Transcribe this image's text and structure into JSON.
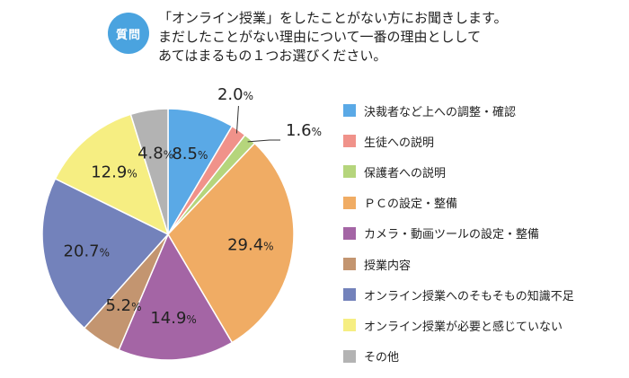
{
  "header": {
    "badge": "質問",
    "question_lines": [
      "「オンライン授業」をしたことがない方にお聞きします。",
      "まだしたことがない理由について一番の理由としして",
      "あてはまるもの１つお選びください。"
    ]
  },
  "chart_data": {
    "type": "pie",
    "title": "",
    "unit": "%",
    "slices": [
      {
        "label": "決裁者など上への調整・確認",
        "value": 8.5,
        "display": "8.5",
        "color": "#5aa9e6"
      },
      {
        "label": "生徒への説明",
        "value": 2.0,
        "display": "2.0",
        "color": "#f0928a"
      },
      {
        "label": "保護者への説明",
        "value": 1.6,
        "display": "1.6",
        "color": "#b5d57c"
      },
      {
        "label": "ＰＣの設定・整備",
        "value": 29.4,
        "display": "29.4",
        "color": "#f0ac64"
      },
      {
        "label": "カメラ・動画ツールの設定・整備",
        "value": 14.9,
        "display": "14.9",
        "color": "#a465a5"
      },
      {
        "label": "授業内容",
        "value": 5.2,
        "display": "5.2",
        "color": "#c39570"
      },
      {
        "label": "オンライン授業へのそもそもの知識不足",
        "value": 20.7,
        "display": "20.7",
        "color": "#7382bb"
      },
      {
        "label": "オンライン授業が必要と感じていない",
        "value": 12.9,
        "display": "12.9",
        "color": "#f6ee82"
      },
      {
        "label": "その他",
        "value": 4.8,
        "display": "4.8",
        "color": "#b3b3b3"
      }
    ],
    "legend_position": "right"
  }
}
